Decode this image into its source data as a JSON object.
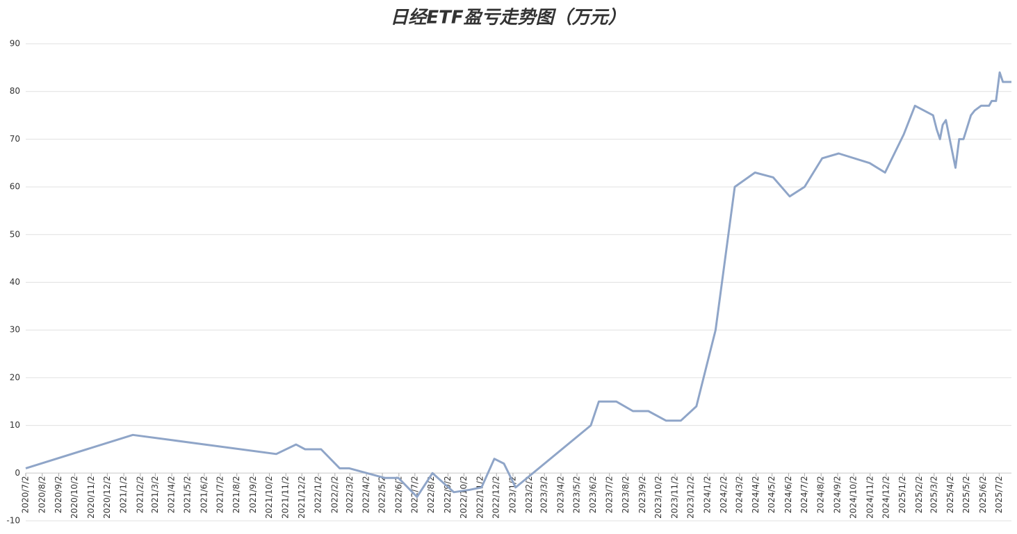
{
  "chart_data": {
    "type": "line",
    "title": "日经ETF盈亏走势图（万元）",
    "color": "#8fa5c8",
    "grid": true,
    "x": [
      "2020/7/2",
      "2021/1/19",
      "2021/10/15",
      "2021/11/21",
      "2021/12/8",
      "2022/1/7",
      "2022/2/11",
      "2022/3/1",
      "2022/5/6",
      "2022/6/1",
      "2022/7/6",
      "2022/8/4",
      "2022/9/13",
      "2022/10/13",
      "2022/11/4",
      "2022/11/28",
      "2022/12/16",
      "2023/1/7",
      "2023/5/28",
      "2023/6/12",
      "2023/7/15",
      "2023/8/15",
      "2023/9/13",
      "2023/10/16",
      "2023/11/13",
      "2023/12/12",
      "2024/1/17",
      "2024/2/22",
      "2024/3/31",
      "2024/5/4",
      "2024/6/4",
      "2024/7/2",
      "2024/8/4",
      "2024/9/4",
      "2024/11/1",
      "2024/11/30",
      "2025/1/4",
      "2025/1/25",
      "2025/2/28",
      "2025/3/7",
      "2025/3/13",
      "2025/3/18",
      "2025/3/24",
      "2025/4/11",
      "2025/4/18",
      "2025/4/26",
      "2025/5/10",
      "2025/5/17",
      "2025/5/29",
      "2025/6/13",
      "2025/6/18",
      "2025/6/26",
      "2025/7/3",
      "2025/7/9",
      "2025/7/25"
    ],
    "values": [
      1,
      8,
      4,
      6,
      5,
      5,
      1,
      1,
      -1,
      -1,
      -5,
      0,
      -4,
      -3.5,
      -3,
      3,
      2,
      -3,
      10,
      15,
      15,
      13,
      13,
      11,
      11,
      14,
      30,
      60,
      63,
      62,
      58,
      60,
      66,
      67,
      65,
      63,
      71,
      77,
      75,
      72,
      70,
      73,
      74,
      64,
      70,
      70,
      75,
      76,
      77,
      77,
      78,
      78,
      84,
      82,
      82
    ],
    "xlim": [
      "2020/7/2",
      "2025/7/25"
    ],
    "xticks": [
      "2020/7/2",
      "2020/8/2",
      "2020/9/2",
      "2020/10/2",
      "2020/11/2",
      "2020/12/2",
      "2021/1/2",
      "2021/2/2",
      "2021/3/2",
      "2021/4/2",
      "2021/5/2",
      "2021/6/2",
      "2021/7/2",
      "2021/8/2",
      "2021/9/2",
      "2021/10/2",
      "2021/11/2",
      "2021/12/2",
      "2022/1/2",
      "2022/2/2",
      "2022/3/2",
      "2022/4/2",
      "2022/5/2",
      "2022/6/2",
      "2022/7/2",
      "2022/8/2",
      "2022/9/2",
      "2022/10/2",
      "2022/11/2",
      "2022/12/2",
      "2023/1/2",
      "2023/2/2",
      "2023/3/2",
      "2023/4/2",
      "2023/5/2",
      "2023/6/2",
      "2023/7/2",
      "2023/8/2",
      "2023/9/2",
      "2023/10/2",
      "2023/11/2",
      "2023/12/2",
      "2024/1/2",
      "2024/2/2",
      "2024/3/2",
      "2024/4/2",
      "2024/5/2",
      "2024/6/2",
      "2024/7/2",
      "2024/8/2",
      "2024/9/2",
      "2024/10/2",
      "2024/11/2",
      "2024/12/2",
      "2025/1/2",
      "2025/2/2",
      "2025/3/2",
      "2025/4/2",
      "2025/5/2",
      "2025/6/2",
      "2025/7/2"
    ],
    "ylim": [
      -10,
      90
    ],
    "yticks": [
      -10,
      0,
      10,
      20,
      30,
      40,
      50,
      60,
      70,
      80,
      90
    ]
  }
}
